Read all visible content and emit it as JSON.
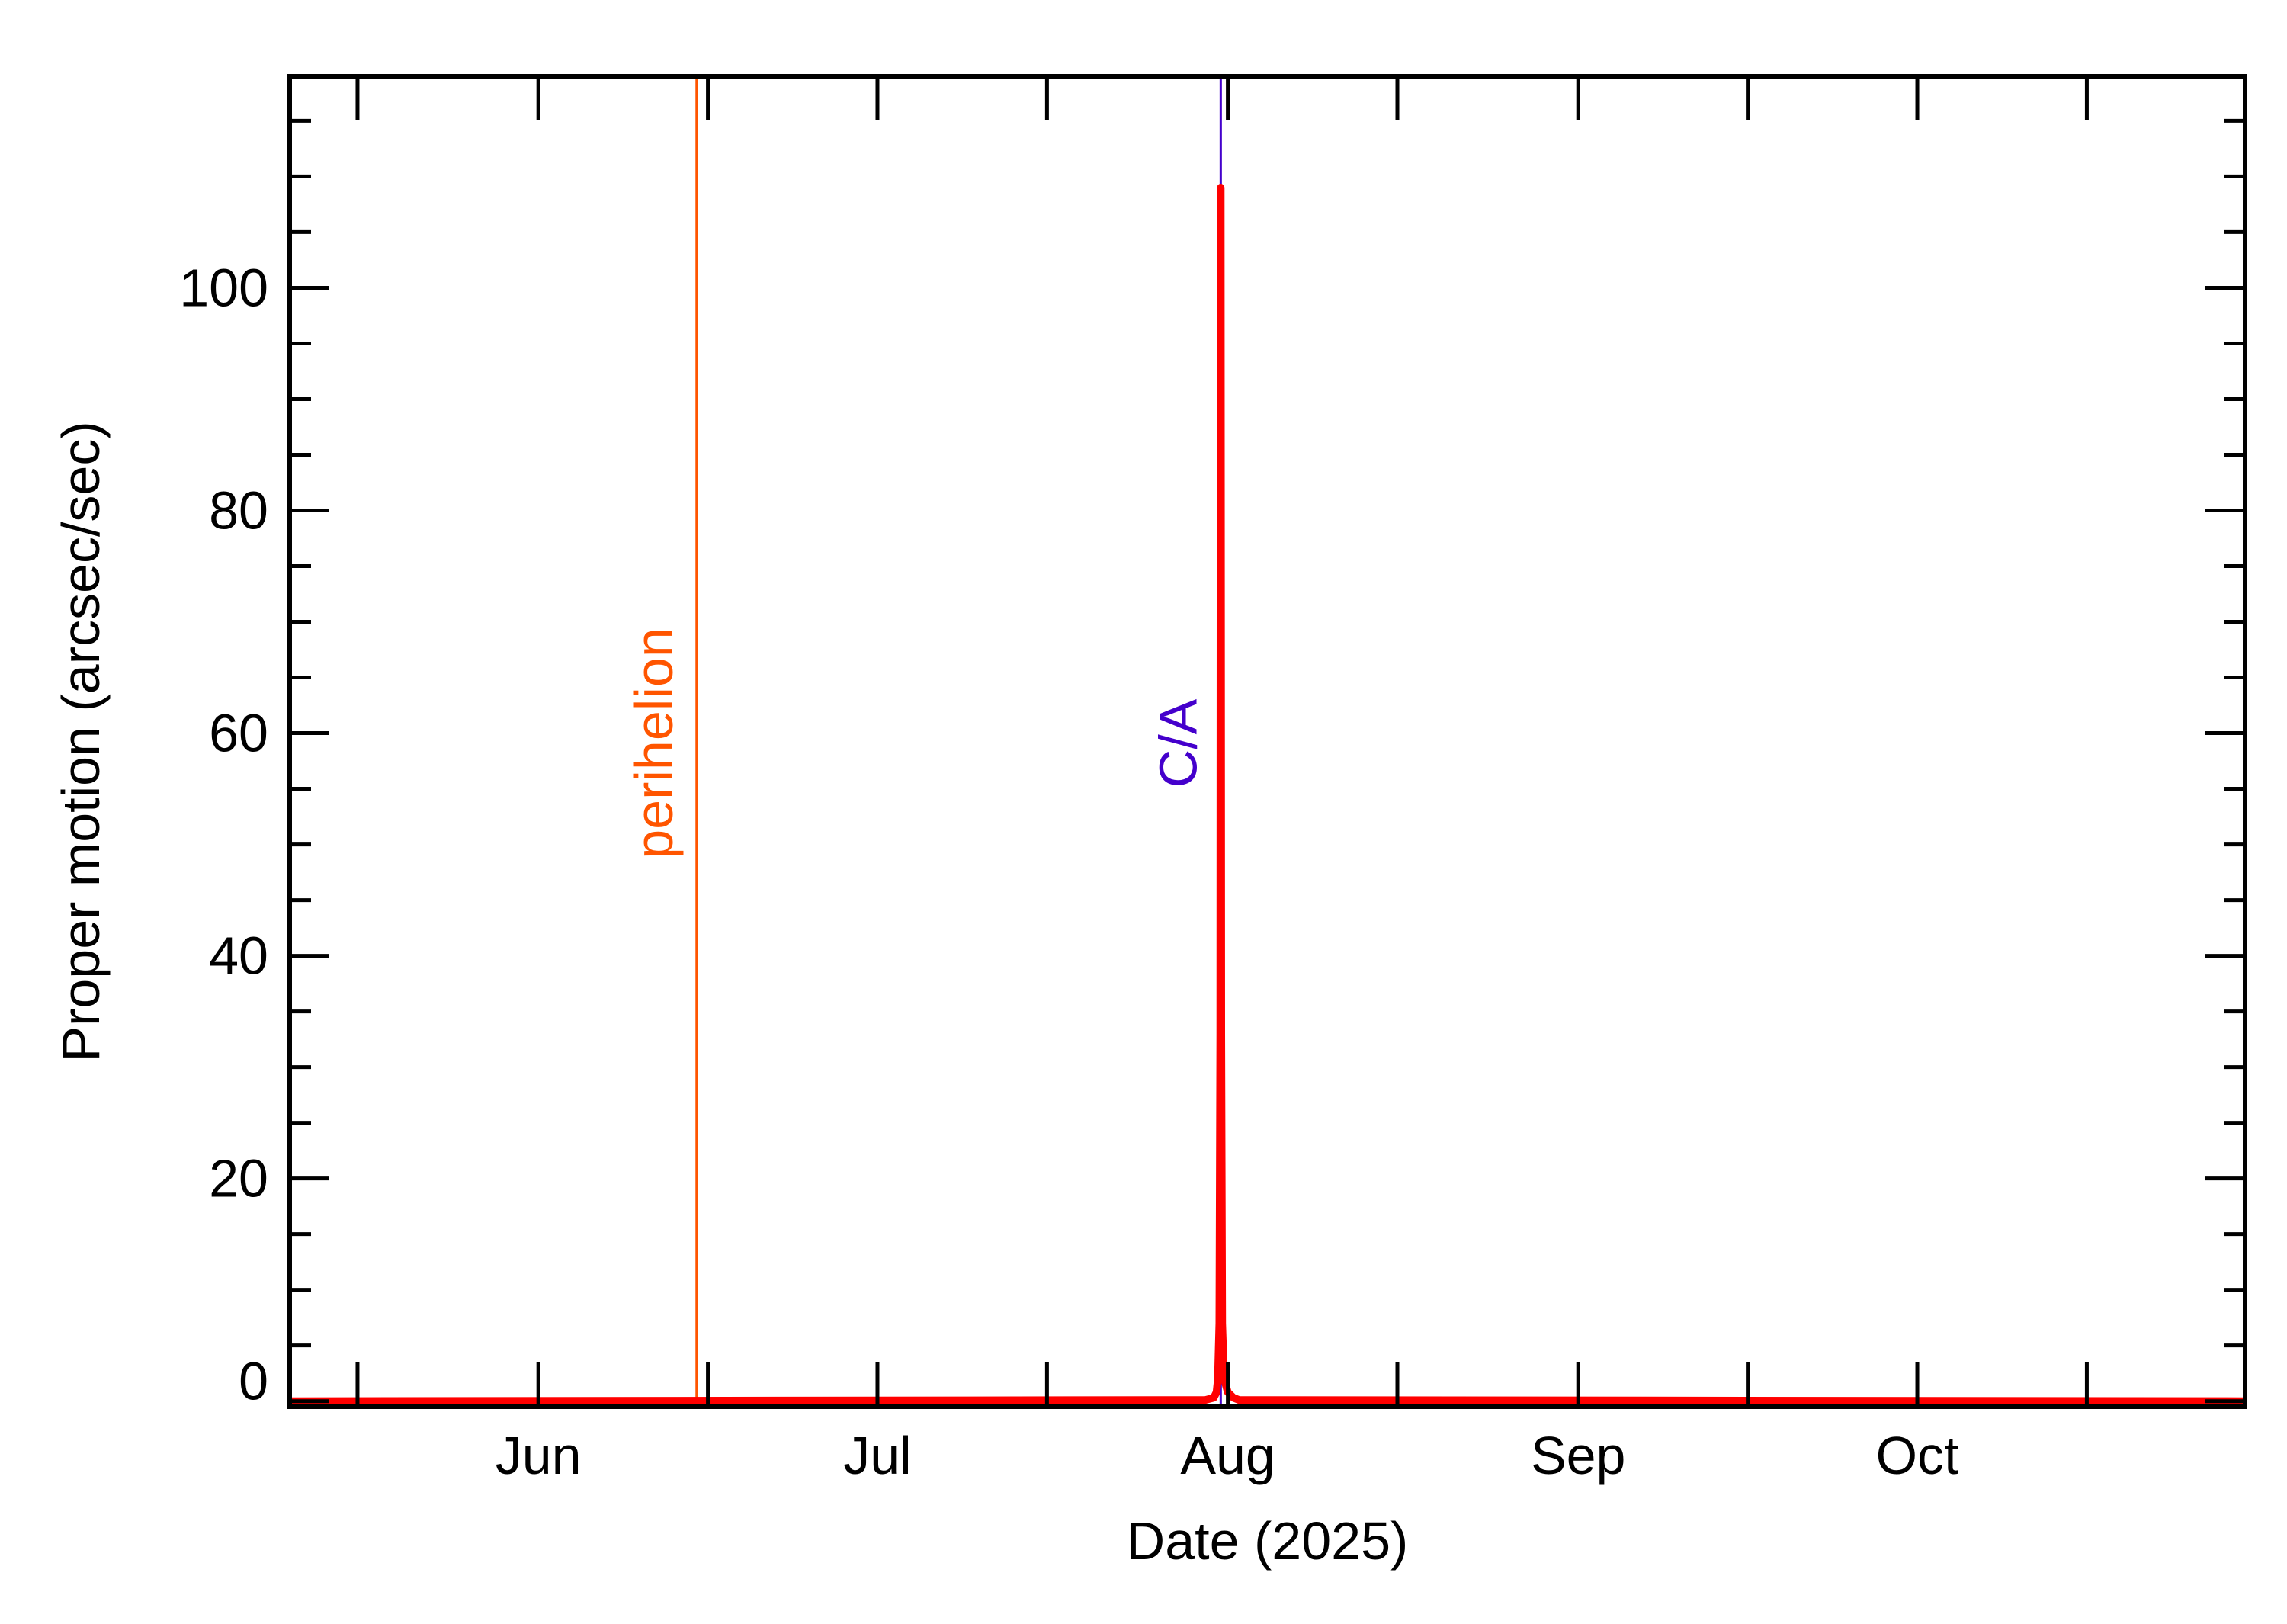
{
  "chart_data": {
    "type": "line",
    "title": "",
    "xlabel": "Date (2025)",
    "ylabel": "Proper motion (arcsec/sec)",
    "x_ticks": [
      {
        "date": "2025-06-01",
        "label": "Jun"
      },
      {
        "date": "2025-07-01",
        "label": "Jul"
      },
      {
        "date": "2025-08-01",
        "label": "Aug"
      },
      {
        "date": "2025-09-01",
        "label": "Sep"
      },
      {
        "date": "2025-10-01",
        "label": "Oct"
      }
    ],
    "xlim": [
      "2025-05-10",
      "2025-10-30"
    ],
    "ylim": [
      -0.5,
      119
    ],
    "y_ticks": [
      0,
      20,
      40,
      60,
      80,
      100
    ],
    "grid": false,
    "series": [
      {
        "color": "#ff0000",
        "x": [
          "2025-05-10",
          "2025-07-30",
          "2025-07-30T18:00",
          "2025-07-31T00:00",
          "2025-07-31T03:00",
          "2025-07-31T06:00",
          "2025-07-31T08:00",
          "2025-07-31T09:00",
          "2025-07-31T10:00",
          "2025-07-31T12:00",
          "2025-07-31T16:00",
          "2025-08-01T00:00",
          "2025-08-01T12:00",
          "2025-08-02",
          "2025-10-30"
        ],
        "y": [
          0,
          0.1,
          0.3,
          0.8,
          2.0,
          7.0,
          33.0,
          109.0,
          33.0,
          7.0,
          2.0,
          0.8,
          0.3,
          0.1,
          0
        ]
      }
    ],
    "annotations": [
      {
        "label": "perihelion",
        "date": "2025-06-15",
        "color": "#ff5500"
      },
      {
        "label": "C/A",
        "date": "2025-07-31T09:00",
        "color": "#4400cc"
      }
    ]
  }
}
